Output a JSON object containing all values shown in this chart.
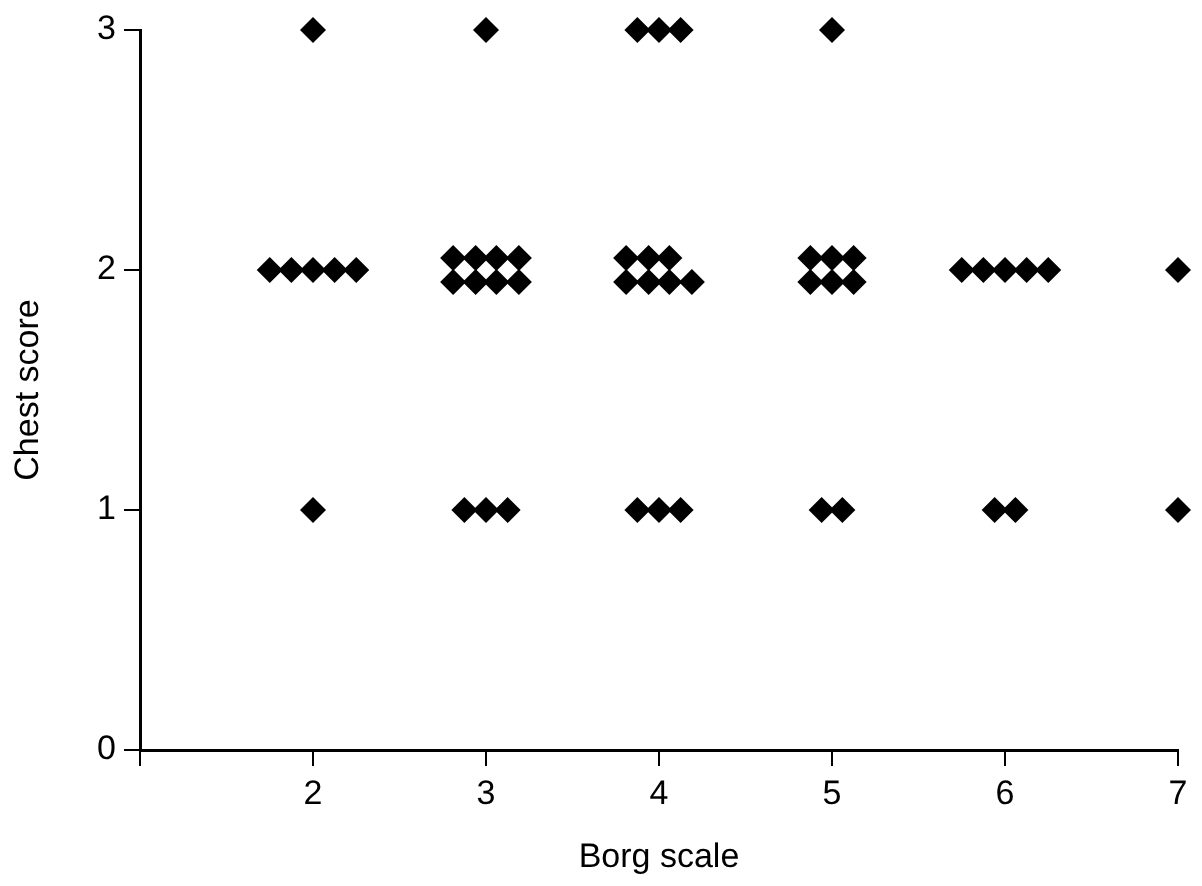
{
  "chart_data": {
    "type": "scatter",
    "xlabel": "Borg scale",
    "ylabel": "Chest score",
    "color": "#000000",
    "marker": "diamond",
    "grid": false,
    "xlim": [
      1,
      7
    ],
    "ylim": [
      0,
      3
    ],
    "xticks": [
      {
        "value": 1,
        "label": null
      },
      2,
      3,
      4,
      5,
      6,
      7
    ],
    "yticks": [
      0,
      1,
      2,
      3
    ],
    "x": [
      2,
      1.75,
      1.875,
      2,
      2.125,
      2.25,
      2,
      3,
      2.81,
      2.94,
      3.06,
      3.19,
      2.81,
      2.94,
      3.06,
      3.19,
      2.875,
      3,
      3.125,
      3.875,
      4,
      4.125,
      3.81,
      3.94,
      4.06,
      3.81,
      3.94,
      4.06,
      4.19,
      3.875,
      4,
      4.125,
      5,
      4.875,
      5,
      5.125,
      4.875,
      5,
      5.125,
      4.94,
      5.06,
      5.75,
      5.875,
      6,
      6.125,
      6.25,
      5.94,
      6.06,
      7,
      7
    ],
    "values": [
      3,
      2,
      2,
      2,
      2,
      2,
      1,
      3,
      2.05,
      2.05,
      2.05,
      2.05,
      1.95,
      1.95,
      1.95,
      1.95,
      1,
      1,
      1,
      3,
      3,
      3,
      2.05,
      2.05,
      2.05,
      1.95,
      1.95,
      1.95,
      1.95,
      1,
      1,
      1,
      3,
      2.05,
      2.05,
      2.05,
      1.95,
      1.95,
      1.95,
      1,
      1,
      2,
      2,
      2,
      2,
      2,
      1,
      1,
      2,
      1
    ]
  }
}
